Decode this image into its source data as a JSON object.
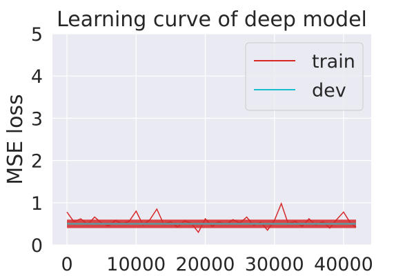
{
  "chart_data": {
    "type": "line",
    "title": "Learning curve of deep model",
    "xlabel": "",
    "ylabel": "MSE loss",
    "xlim": [
      -2100,
      44000
    ],
    "ylim": [
      0,
      5
    ],
    "grid": true,
    "legend": "top-right",
    "x_ticks": [
      0,
      10000,
      20000,
      30000,
      40000
    ],
    "x_tick_labels": [
      "0",
      "10000",
      "20000",
      "30000",
      "40000"
    ],
    "y_ticks": [
      0,
      1,
      2,
      3,
      4,
      5
    ],
    "y_tick_labels": [
      "0",
      "1",
      "2",
      "3",
      "4",
      "5"
    ],
    "series": [
      {
        "name": "train",
        "color": "#d62728",
        "x": [
          0,
          1000,
          2000,
          3000,
          4000,
          5000,
          6000,
          7000,
          8000,
          9000,
          10000,
          11000,
          12000,
          13000,
          14000,
          15000,
          16000,
          17000,
          18000,
          19000,
          20000,
          21000,
          22000,
          23000,
          24000,
          25000,
          26000,
          27000,
          28000,
          29000,
          30000,
          31000,
          32000,
          33000,
          34000,
          35000,
          36000,
          37000,
          38000,
          39000,
          40000,
          41000,
          41800
        ],
        "y": [
          0.78,
          0.55,
          0.62,
          0.48,
          0.66,
          0.52,
          0.45,
          0.58,
          0.5,
          0.56,
          0.8,
          0.47,
          0.6,
          0.85,
          0.49,
          0.55,
          0.42,
          0.57,
          0.51,
          0.3,
          0.62,
          0.44,
          0.55,
          0.48,
          0.6,
          0.52,
          0.66,
          0.46,
          0.54,
          0.35,
          0.58,
          0.98,
          0.5,
          0.56,
          0.44,
          0.62,
          0.47,
          0.55,
          0.4,
          0.6,
          0.78,
          0.52,
          0.42
        ]
      },
      {
        "name": "dev",
        "color": "#17becf",
        "x": [
          0,
          41800
        ],
        "y": [
          0.5,
          0.5
        ]
      }
    ]
  }
}
